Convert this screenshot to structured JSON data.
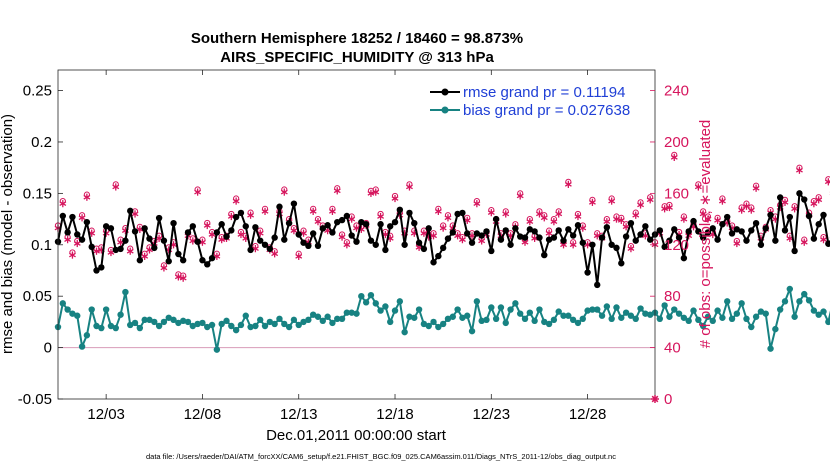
{
  "chart_data": {
    "type": "line",
    "title_line1": "Southern Hemisphere 18252 / 18460 = 98.873%",
    "title_line2": "AIRS_SPECIFIC_HUMIDITY @ 313 hPa",
    "xlabel": "Dec.01,2011 00:00:00 start",
    "ylabel_left": "rmse and bias (model - observation)",
    "ylabel_right": "# of obs: o=possible; ∗=evaluated",
    "xlim": [
      0.5,
      31.5
    ],
    "ylim_left": [
      -0.05,
      0.27
    ],
    "ylim_right": [
      0,
      256
    ],
    "x_ticks": [
      {
        "value": 3,
        "label": "12/03"
      },
      {
        "value": 8,
        "label": "12/08"
      },
      {
        "value": 13,
        "label": "12/13"
      },
      {
        "value": 18,
        "label": "12/18"
      },
      {
        "value": 23,
        "label": "12/23"
      },
      {
        "value": 28,
        "label": "12/28"
      }
    ],
    "y_ticks_left": [
      {
        "value": -0.05,
        "label": "-0.05"
      },
      {
        "value": 0,
        "label": "0"
      },
      {
        "value": 0.05,
        "label": "0.05"
      },
      {
        "value": 0.1,
        "label": "0.1"
      },
      {
        "value": 0.15,
        "label": "0.15"
      },
      {
        "value": 0.2,
        "label": "0.2"
      },
      {
        "value": 0.25,
        "label": "0.25"
      }
    ],
    "y_ticks_right": [
      {
        "value": 0,
        "label": "0"
      },
      {
        "value": 40,
        "label": "40"
      },
      {
        "value": 80,
        "label": "80"
      },
      {
        "value": 120,
        "label": "120"
      },
      {
        "value": 160,
        "label": "160"
      },
      {
        "value": 200,
        "label": "200"
      },
      {
        "value": 240,
        "label": "240"
      }
    ],
    "zero_line": 0,
    "x_start": 0.5,
    "x_step": 0.25,
    "series": [
      {
        "name": "rmse grand pr = 0.11194",
        "axis": "left",
        "color": "#000000",
        "values": [
          0.103,
          0.128,
          0.112,
          0.127,
          0.11,
          0.105,
          0.122,
          0.098,
          0.075,
          0.078,
          0.118,
          0.116,
          0.095,
          0.096,
          0.104,
          0.133,
          0.113,
          0.085,
          0.116,
          0.106,
          0.097,
          0.126,
          0.104,
          0.084,
          0.121,
          0.091,
          0.085,
          0.112,
          0.118,
          0.103,
          0.085,
          0.081,
          0.087,
          0.112,
          0.12,
          0.108,
          0.114,
          0.127,
          0.131,
          0.118,
          0.095,
          0.117,
          0.104,
          0.1,
          0.096,
          0.107,
          0.137,
          0.105,
          0.121,
          0.14,
          0.11,
          0.102,
          0.099,
          0.111,
          0.099,
          0.116,
          0.119,
          0.112,
          0.122,
          0.124,
          0.128,
          0.109,
          0.103,
          0.122,
          0.12,
          0.104,
          0.1,
          0.12,
          0.095,
          0.118,
          0.122,
          0.134,
          0.1,
          0.131,
          0.121,
          0.102,
          0.096,
          0.116,
          0.083,
          0.089,
          0.097,
          0.106,
          0.112,
          0.13,
          0.131,
          0.111,
          0.102,
          0.111,
          0.109,
          0.113,
          0.094,
          0.125,
          0.105,
          0.114,
          0.1,
          0.116,
          0.108,
          0.107,
          0.115,
          0.113,
          0.107,
          0.09,
          0.105,
          0.107,
          0.114,
          0.104,
          0.115,
          0.109,
          0.119,
          0.102,
          0.073,
          0.1,
          0.061,
          0.107,
          0.117,
          0.1,
          0.097,
          0.082,
          0.108,
          0.121,
          0.104,
          0.11,
          0.118,
          0.105,
          0.11,
          0.114,
          0.098,
          0.104,
          0.115,
          0.107,
          0.087,
          0.113,
          0.123,
          0.113,
          0.107,
          0.112,
          0.116,
          0.105,
          0.12,
          0.127,
          0.111,
          0.115,
          0.113,
          0.104,
          0.114,
          0.121,
          0.1,
          0.116,
          0.129,
          0.104,
          0.146,
          0.114,
          0.127,
          0.094,
          0.15,
          0.144,
          0.128,
          0.106,
          0.12,
          0.129,
          0.101,
          0.107,
          0.127,
          0.113,
          0.101,
          0.113,
          0.143,
          0.148,
          0.127,
          0.106,
          0.138,
          0.105,
          0.112,
          0.108
        ]
      },
      {
        "name": "bias grand pr = 0.027638",
        "axis": "left",
        "color": "#178282",
        "values": [
          0.02,
          0.043,
          0.037,
          0.033,
          0.031,
          0.001,
          0.012,
          0.037,
          0.021,
          0.019,
          0.037,
          0.021,
          0.019,
          0.032,
          0.054,
          0.022,
          0.024,
          0.019,
          0.027,
          0.027,
          0.025,
          0.021,
          0.025,
          0.029,
          0.027,
          0.024,
          0.026,
          0.025,
          0.021,
          0.023,
          0.024,
          0.02,
          0.022,
          -0.002,
          0.023,
          0.026,
          0.021,
          0.017,
          0.022,
          0.031,
          0.02,
          0.021,
          0.027,
          0.021,
          0.025,
          0.023,
          0.028,
          0.023,
          0.02,
          0.027,
          0.022,
          0.025,
          0.027,
          0.032,
          0.03,
          0.026,
          0.03,
          0.024,
          0.028,
          0.028,
          0.034,
          0.034,
          0.033,
          0.05,
          0.044,
          0.051,
          0.043,
          0.036,
          0.04,
          0.025,
          0.036,
          0.045,
          0.015,
          0.03,
          0.029,
          0.037,
          0.023,
          0.021,
          0.025,
          0.02,
          0.023,
          0.028,
          0.03,
          0.037,
          0.029,
          0.031,
          0.016,
          0.045,
          0.026,
          0.027,
          0.039,
          0.028,
          0.039,
          0.024,
          0.037,
          0.043,
          0.033,
          0.028,
          0.034,
          0.026,
          0.037,
          0.025,
          0.023,
          0.027,
          0.035,
          0.031,
          0.031,
          0.027,
          0.024,
          0.028,
          0.036,
          0.037,
          0.037,
          0.031,
          0.04,
          0.028,
          0.039,
          0.029,
          0.034,
          0.031,
          0.028,
          0.038,
          0.033,
          0.032,
          0.034,
          0.028,
          0.041,
          0.03,
          0.037,
          0.033,
          0.029,
          0.026,
          0.036,
          0.027,
          0.021,
          0.03,
          0.026,
          0.036,
          0.029,
          0.045,
          0.028,
          0.033,
          0.043,
          0.028,
          0.02,
          0.03,
          0.035,
          0.033,
          -0.001,
          0.018,
          0.037,
          0.045,
          0.057,
          0.03,
          0.045,
          0.052,
          0.046,
          0.036,
          0.032,
          0.035,
          0.025,
          0.045,
          0.012,
          0.025,
          0.031,
          0.042,
          0.049,
          0.02,
          0.045,
          0.02,
          0.028,
          0.021
        ]
      },
      {
        "name": "obs possible",
        "axis": "right",
        "color": "#d6155d",
        "marker": "circle",
        "values": [
          135,
          154,
          126,
          114,
          123,
          143,
          159,
          131,
          117,
          118,
          131,
          116,
          167,
          124,
          133,
          117,
          146,
          134,
          113,
          118,
          123,
          127,
          104,
          118,
          122,
          97,
          96,
          129,
          125,
          163,
          124,
          137,
          130,
          113,
          126,
          127,
          144,
          156,
          130,
          127,
          145,
          119,
          131,
          148,
          118,
          115,
          146,
          163,
          140,
          133,
          113,
          131,
          124,
          148,
          140,
          135,
          133,
          148,
          164,
          128,
          122,
          142,
          135,
          134,
          137,
          162,
          163,
          144,
          130,
          127,
          158,
          145,
          131,
          167,
          131,
          120,
          131,
          128,
          129,
          148,
          135,
          143,
          135,
          129,
          126,
          141,
          129,
          154,
          125,
          130,
          147,
          140,
          129,
          146,
          129,
          136,
          160,
          124,
          140,
          127,
          146,
          143,
          131,
          140,
          146,
          122,
          169,
          122,
          144,
          135,
          122,
          155,
          129,
          127,
          140,
          156,
          142,
          141,
          136,
          119,
          145,
          153,
          129,
          157,
          122,
          131,
          150,
          151,
          190,
          130,
          142,
          129,
          136,
          167,
          146,
          142,
          130,
          141,
          156,
          139,
          135,
          123,
          149,
          152,
          149,
          166,
          127,
          134,
          147,
          142,
          151,
          155,
          127,
          150,
          180,
          124,
          145,
          154,
          157,
          126,
          171,
          162,
          129,
          149,
          148,
          150,
          127,
          128,
          147,
          132
        ]
      },
      {
        "name": "obs evaluated",
        "axis": "right",
        "color": "#d6155d",
        "marker": "asterisk",
        "values": [
          133,
          152,
          124,
          112,
          121,
          141,
          157,
          129,
          115,
          116,
          129,
          114,
          165,
          122,
          131,
          115,
          144,
          132,
          111,
          116,
          121,
          125,
          102,
          116,
          120,
          95,
          94,
          127,
          123,
          161,
          122,
          135,
          128,
          111,
          124,
          125,
          142,
          154,
          128,
          125,
          143,
          117,
          129,
          146,
          116,
          113,
          144,
          161,
          138,
          131,
          111,
          129,
          122,
          146,
          138,
          133,
          131,
          146,
          162,
          126,
          120,
          140,
          133,
          132,
          135,
          160,
          161,
          142,
          128,
          125,
          156,
          143,
          129,
          165,
          129,
          118,
          129,
          126,
          127,
          146,
          133,
          141,
          133,
          127,
          124,
          139,
          127,
          152,
          123,
          128,
          145,
          138,
          127,
          144,
          127,
          134,
          158,
          122,
          138,
          125,
          144,
          141,
          129,
          138,
          144,
          120,
          167,
          120,
          142,
          133,
          120,
          153,
          127,
          125,
          138,
          154,
          140,
          139,
          134,
          117,
          143,
          151,
          127,
          155,
          120,
          129,
          148,
          149,
          188,
          128,
          140,
          127,
          134,
          165,
          144,
          140,
          128,
          139,
          154,
          137,
          133,
          121,
          147,
          150,
          147,
          164,
          125,
          132,
          145,
          140,
          149,
          153,
          125,
          148,
          178,
          122,
          143,
          152,
          155,
          124,
          169,
          160,
          127,
          147,
          146,
          148,
          125,
          126,
          145,
          130
        ]
      }
    ],
    "legend": [
      {
        "label": "rmse grand pr = 0.11194",
        "color": "#000000",
        "text_color": "#1f3fd6"
      },
      {
        "label": "bias grand pr = 0.027638",
        "color": "#178282",
        "text_color": "#1f3fd6"
      }
    ],
    "legend_position": "top-right",
    "left_axis_color": "#000000",
    "right_axis_color": "#d6155d",
    "footer": "data file: /Users/raeder/DAI/ATM_forcXX/CAM6_setup/f.e21.FHIST_BGC.f09_025.CAM6assim.011/Diags_NTrS_2011-12/obs_diag_output.nc"
  }
}
